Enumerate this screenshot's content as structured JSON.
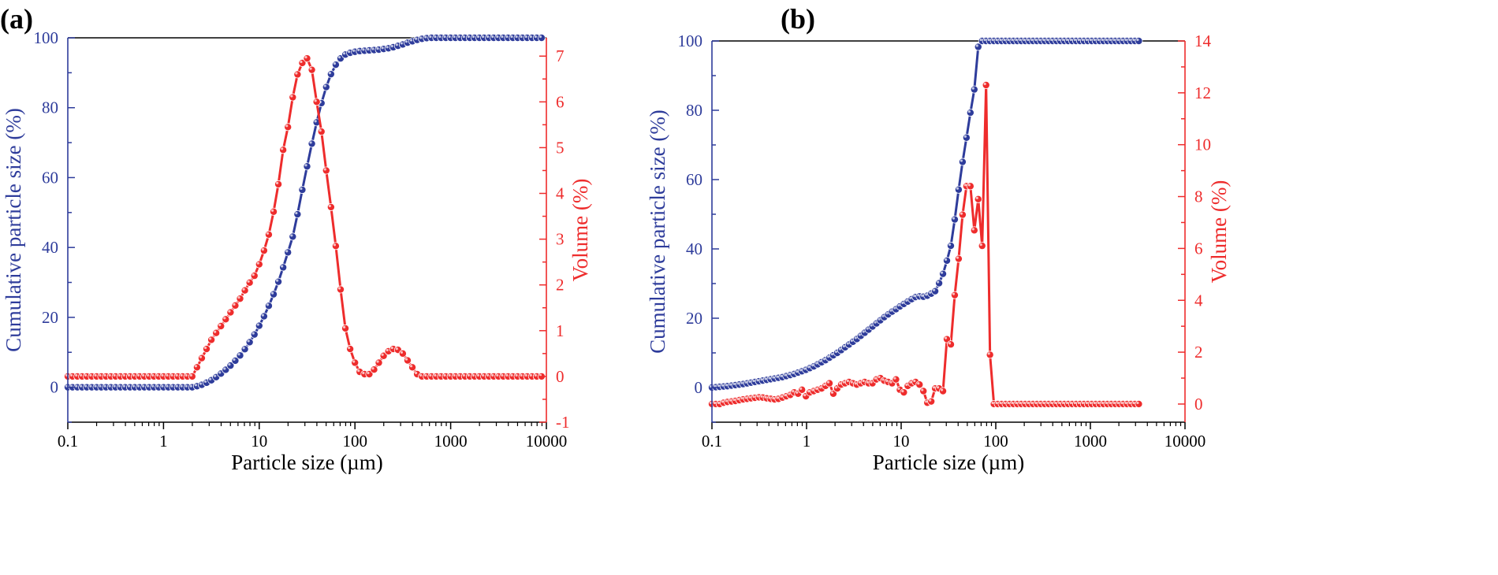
{
  "figure": {
    "colors": {
      "blue": "#2e3c9b",
      "red": "#ee2c2c",
      "black": "#000000"
    }
  },
  "chart_data": [
    {
      "panel_label": "(a)",
      "type": "line",
      "title": "",
      "xlabel": "Particle size (µm)",
      "ylabel_left": "Cumulative particle size (%)",
      "ylabel_right": "Volume (%)",
      "xscale": "log",
      "xlim": [
        0.1,
        10000
      ],
      "ylim_left": [
        -10,
        100
      ],
      "ylim_right": [
        -1,
        7.4
      ],
      "x_ticks": [
        "0.1",
        "1",
        "10",
        "100",
        "1000",
        "10000"
      ],
      "left_ticks": [
        "0",
        "20",
        "40",
        "60",
        "80",
        "100"
      ],
      "right_ticks": [
        "-1",
        "0",
        "1",
        "2",
        "3",
        "4",
        "5",
        "6",
        "7"
      ],
      "series": [
        {
          "name": "Cumulative particle size (%)",
          "axis": "left",
          "color": "#2e3c9b",
          "x": [
            0.1,
            0.112,
            0.126,
            0.141,
            0.158,
            0.178,
            0.2,
            0.224,
            0.251,
            0.282,
            0.316,
            0.355,
            0.398,
            0.447,
            0.501,
            0.562,
            0.631,
            0.708,
            0.794,
            0.891,
            1,
            1.122,
            1.259,
            1.413,
            1.585,
            1.778,
            1.995,
            2.239,
            2.512,
            2.818,
            3.162,
            3.548,
            3.981,
            4.467,
            5.012,
            5.623,
            6.31,
            7.079,
            7.943,
            8.913,
            10,
            11.22,
            12.59,
            14.13,
            15.85,
            17.78,
            19.95,
            22.39,
            25.12,
            28.18,
            31.62,
            35.48,
            39.81,
            44.67,
            50.12,
            56.23,
            63.1,
            70.79,
            79.43,
            89.13,
            100,
            112.2,
            125.9,
            141.3,
            158.5,
            177.8,
            199.5,
            223.9,
            251.2,
            281.8,
            316.2,
            354.8,
            398.1,
            446.7,
            501.2,
            562.3,
            631,
            707.9,
            794.3,
            891.3,
            1000,
            1122,
            1259,
            1413,
            1585,
            1778,
            1995,
            2239,
            2512,
            2818,
            3162,
            3548,
            3981,
            4467,
            5012,
            5623,
            6310,
            7079,
            7943,
            8913
          ],
          "values": [
            0,
            0,
            0,
            0,
            0,
            0,
            0,
            0,
            0,
            0,
            0,
            0,
            0,
            0,
            0,
            0,
            0,
            0,
            0,
            0,
            0,
            0,
            0,
            0,
            0,
            0,
            0,
            0.3,
            0.7,
            1.3,
            2,
            2.9,
            3.9,
            5,
            6.2,
            7.6,
            9.1,
            10.9,
            12.9,
            15.1,
            17.6,
            20.3,
            23.3,
            26.6,
            30.2,
            34.3,
            38.6,
            43.1,
            49.5,
            56.5,
            63.2,
            69.7,
            75.8,
            81.3,
            85.9,
            89.6,
            92.3,
            94.1,
            95.2,
            95.7,
            96,
            96.2,
            96.3,
            96.4,
            96.5,
            96.6,
            96.8,
            97,
            97.3,
            97.7,
            98.1,
            98.6,
            99,
            99.4,
            99.7,
            99.9,
            100,
            100,
            100,
            100,
            100,
            100,
            100,
            100,
            100,
            100,
            100,
            100,
            100,
            100,
            100,
            100,
            100,
            100,
            100,
            100,
            100,
            100,
            100,
            100
          ]
        },
        {
          "name": "Volume (%)",
          "axis": "right",
          "color": "#ee2c2c",
          "x": [
            0.1,
            0.112,
            0.126,
            0.141,
            0.158,
            0.178,
            0.2,
            0.224,
            0.251,
            0.282,
            0.316,
            0.355,
            0.398,
            0.447,
            0.501,
            0.562,
            0.631,
            0.708,
            0.794,
            0.891,
            1,
            1.122,
            1.259,
            1.413,
            1.585,
            1.778,
            1.995,
            2.239,
            2.512,
            2.818,
            3.162,
            3.548,
            3.981,
            4.467,
            5.012,
            5.623,
            6.31,
            7.079,
            7.943,
            8.913,
            10,
            11.22,
            12.59,
            14.13,
            15.85,
            17.78,
            19.95,
            22.39,
            25.12,
            28.18,
            31.62,
            35.48,
            39.81,
            44.67,
            50.12,
            56.23,
            63.1,
            70.79,
            79.43,
            89.13,
            100,
            112.2,
            125.9,
            141.3,
            158.5,
            177.8,
            199.5,
            223.9,
            251.2,
            281.8,
            316.2,
            354.8,
            398.1,
            446.7,
            501.2,
            562.3,
            631,
            707.9,
            794.3,
            891.3,
            1000,
            1122,
            1259,
            1413,
            1585,
            1778,
            1995,
            2239,
            2512,
            2818,
            3162,
            3548,
            3981,
            4467,
            5012,
            5623,
            6310,
            7079,
            7943,
            8913
          ],
          "values": [
            0,
            0,
            0,
            0,
            0,
            0,
            0,
            0,
            0,
            0,
            0,
            0,
            0,
            0,
            0,
            0,
            0,
            0,
            0,
            0,
            0,
            0,
            0,
            0,
            0,
            0,
            0,
            0.2,
            0.4,
            0.6,
            0.8,
            0.95,
            1.1,
            1.25,
            1.4,
            1.55,
            1.7,
            1.88,
            2.05,
            2.2,
            2.45,
            2.75,
            3.1,
            3.6,
            4.2,
            4.95,
            5.45,
            6.1,
            6.6,
            6.85,
            6.95,
            6.7,
            6.0,
            5.35,
            4.5,
            3.7,
            2.85,
            1.9,
            1.05,
            0.6,
            0.3,
            0.1,
            0.05,
            0.05,
            0.15,
            0.3,
            0.45,
            0.55,
            0.6,
            0.58,
            0.5,
            0.35,
            0.2,
            0.05,
            0,
            0,
            0,
            0,
            0,
            0,
            0,
            0,
            0,
            0,
            0,
            0,
            0,
            0,
            0,
            0,
            0,
            0,
            0,
            0,
            0,
            0,
            0,
            0,
            0,
            0
          ]
        }
      ]
    },
    {
      "panel_label": "(b)",
      "type": "line",
      "title": "",
      "xlabel": "Particle size (µm)",
      "ylabel_left": "Cumulative particle size (%)",
      "ylabel_right": "Volume (%)",
      "xscale": "log",
      "xlim": [
        0.1,
        10000
      ],
      "ylim_left": [
        -10,
        100
      ],
      "ylim_right": [
        -0.7,
        14
      ],
      "x_ticks": [
        "0.1",
        "1",
        "10",
        "100",
        "1000",
        "10000"
      ],
      "left_ticks": [
        "0",
        "20",
        "40",
        "60",
        "80",
        "100"
      ],
      "right_ticks": [
        "0",
        "2",
        "4",
        "6",
        "8",
        "10",
        "12",
        "14"
      ],
      "series": [
        {
          "name": "Cumulative particle size (%)",
          "axis": "left",
          "color": "#2e3c9b",
          "x": [
            0.1,
            0.11,
            0.121,
            0.133,
            0.146,
            0.161,
            0.177,
            0.195,
            0.214,
            0.236,
            0.259,
            0.285,
            0.314,
            0.345,
            0.38,
            0.418,
            0.459,
            0.505,
            0.556,
            0.612,
            0.673,
            0.74,
            0.814,
            0.895,
            0.985,
            1.083,
            1.192,
            1.311,
            1.442,
            1.586,
            1.745,
            1.919,
            2.111,
            2.322,
            2.555,
            2.81,
            3.091,
            3.4,
            3.74,
            4.114,
            4.526,
            4.978,
            5.476,
            6.024,
            6.626,
            7.289,
            8.018,
            8.82,
            9.702,
            10.67,
            11.74,
            12.91,
            14.2,
            15.63,
            17.19,
            18.91,
            20.8,
            22.88,
            25.17,
            27.68,
            30.45,
            33.5,
            36.85,
            40.53,
            44.59,
            49.04,
            53.95,
            59.34,
            65.28,
            71.81,
            78.99,
            86.89,
            95.58,
            105.1,
            115.6,
            127.2,
            139.9,
            153.9,
            169.3,
            186.2,
            204.9,
            225.4,
            247.9,
            272.7,
            300,
            330,
            363,
            399.3,
            439.2,
            483.1,
            531.5,
            584.6,
            643.1,
            707.4,
            778.1,
            855.9,
            941.5,
            1035.7,
            1139.3,
            1253.2,
            1378.5,
            1516.4,
            1668,
            1834.8,
            2018.3,
            2220,
            2442,
            2686.2,
            2954.8,
            3250
          ],
          "values": [
            0,
            0.1,
            0.2,
            0.3,
            0.4,
            0.55,
            0.7,
            0.85,
            1,
            1.2,
            1.4,
            1.6,
            1.8,
            2,
            2.2,
            2.4,
            2.6,
            2.8,
            3,
            3.3,
            3.6,
            3.9,
            4.3,
            4.7,
            5.1,
            5.6,
            6.1,
            6.7,
            7.3,
            7.9,
            8.6,
            9.3,
            10,
            10.8,
            11.6,
            12.4,
            13.2,
            14,
            14.9,
            15.8,
            16.7,
            17.6,
            18.5,
            19.4,
            20.3,
            21.1,
            21.9,
            22.6,
            23.4,
            24.1,
            24.8,
            25.5,
            26.1,
            26.3,
            26.2,
            26.5,
            27.1,
            27.8,
            30.1,
            32.8,
            36.6,
            40.9,
            48.5,
            57.1,
            65.1,
            72.1,
            79.3,
            86,
            98.3,
            100,
            100,
            100,
            100,
            100,
            100,
            100,
            100,
            100,
            100,
            100,
            100,
            100,
            100,
            100,
            100,
            100,
            100,
            100,
            100,
            100,
            100,
            100,
            100,
            100,
            100,
            100,
            100,
            100,
            100,
            100,
            100,
            100,
            100,
            100,
            100,
            100,
            100,
            100,
            100,
            100
          ]
        },
        {
          "name": "Volume (%)",
          "axis": "right",
          "color": "#ee2c2c",
          "x": [
            0.1,
            0.11,
            0.121,
            0.133,
            0.146,
            0.161,
            0.177,
            0.195,
            0.214,
            0.236,
            0.259,
            0.285,
            0.314,
            0.345,
            0.38,
            0.418,
            0.459,
            0.505,
            0.556,
            0.612,
            0.673,
            0.74,
            0.814,
            0.895,
            0.985,
            1.083,
            1.192,
            1.311,
            1.442,
            1.586,
            1.745,
            1.919,
            2.111,
            2.322,
            2.555,
            2.81,
            3.091,
            3.4,
            3.74,
            4.114,
            4.526,
            4.978,
            5.476,
            6.024,
            6.626,
            7.289,
            8.018,
            8.82,
            9.702,
            10.67,
            11.74,
            12.91,
            14.2,
            15.63,
            17.19,
            18.91,
            20.8,
            22.88,
            25.17,
            27.68,
            30.45,
            33.5,
            36.85,
            40.53,
            44.59,
            49.04,
            53.95,
            59.34,
            65.28,
            71.81,
            78.99,
            86.89,
            95.58,
            105.1,
            115.6,
            127.2,
            139.9,
            153.9,
            169.3,
            186.2,
            204.9,
            225.4,
            247.9,
            272.7,
            300,
            330,
            363,
            399.3,
            439.2,
            483.1,
            531.5,
            584.6,
            643.1,
            707.4,
            778.1,
            855.9,
            941.5,
            1035.7,
            1139.3,
            1253.2,
            1378.5,
            1516.4,
            1668,
            1834.8,
            2018.3,
            2220,
            2442,
            2686.2,
            2954.8,
            3250
          ],
          "values": [
            0,
            0,
            0,
            0.05,
            0.08,
            0.1,
            0.12,
            0.15,
            0.18,
            0.2,
            0.22,
            0.24,
            0.26,
            0.25,
            0.22,
            0.2,
            0.18,
            0.2,
            0.25,
            0.3,
            0.35,
            0.45,
            0.4,
            0.55,
            0.3,
            0.45,
            0.5,
            0.55,
            0.6,
            0.7,
            0.8,
            0.4,
            0.6,
            0.75,
            0.8,
            0.85,
            0.8,
            0.75,
            0.8,
            0.85,
            0.8,
            0.8,
            0.95,
            1.0,
            0.9,
            0.85,
            0.8,
            0.95,
            0.55,
            0.45,
            0.7,
            0.8,
            0.85,
            0.75,
            0.5,
            0.05,
            0.1,
            0.6,
            0.6,
            0.5,
            2.5,
            2.3,
            4.2,
            5.6,
            7.3,
            8.4,
            8.4,
            6.7,
            7.9,
            6.1,
            12.3,
            1.9,
            0,
            0,
            0,
            0,
            0,
            0,
            0,
            0,
            0,
            0,
            0,
            0,
            0,
            0,
            0,
            0,
            0,
            0,
            0,
            0,
            0,
            0,
            0,
            0,
            0,
            0,
            0,
            0,
            0,
            0,
            0,
            0,
            0,
            0,
            0,
            0,
            0,
            0
          ]
        }
      ]
    }
  ]
}
